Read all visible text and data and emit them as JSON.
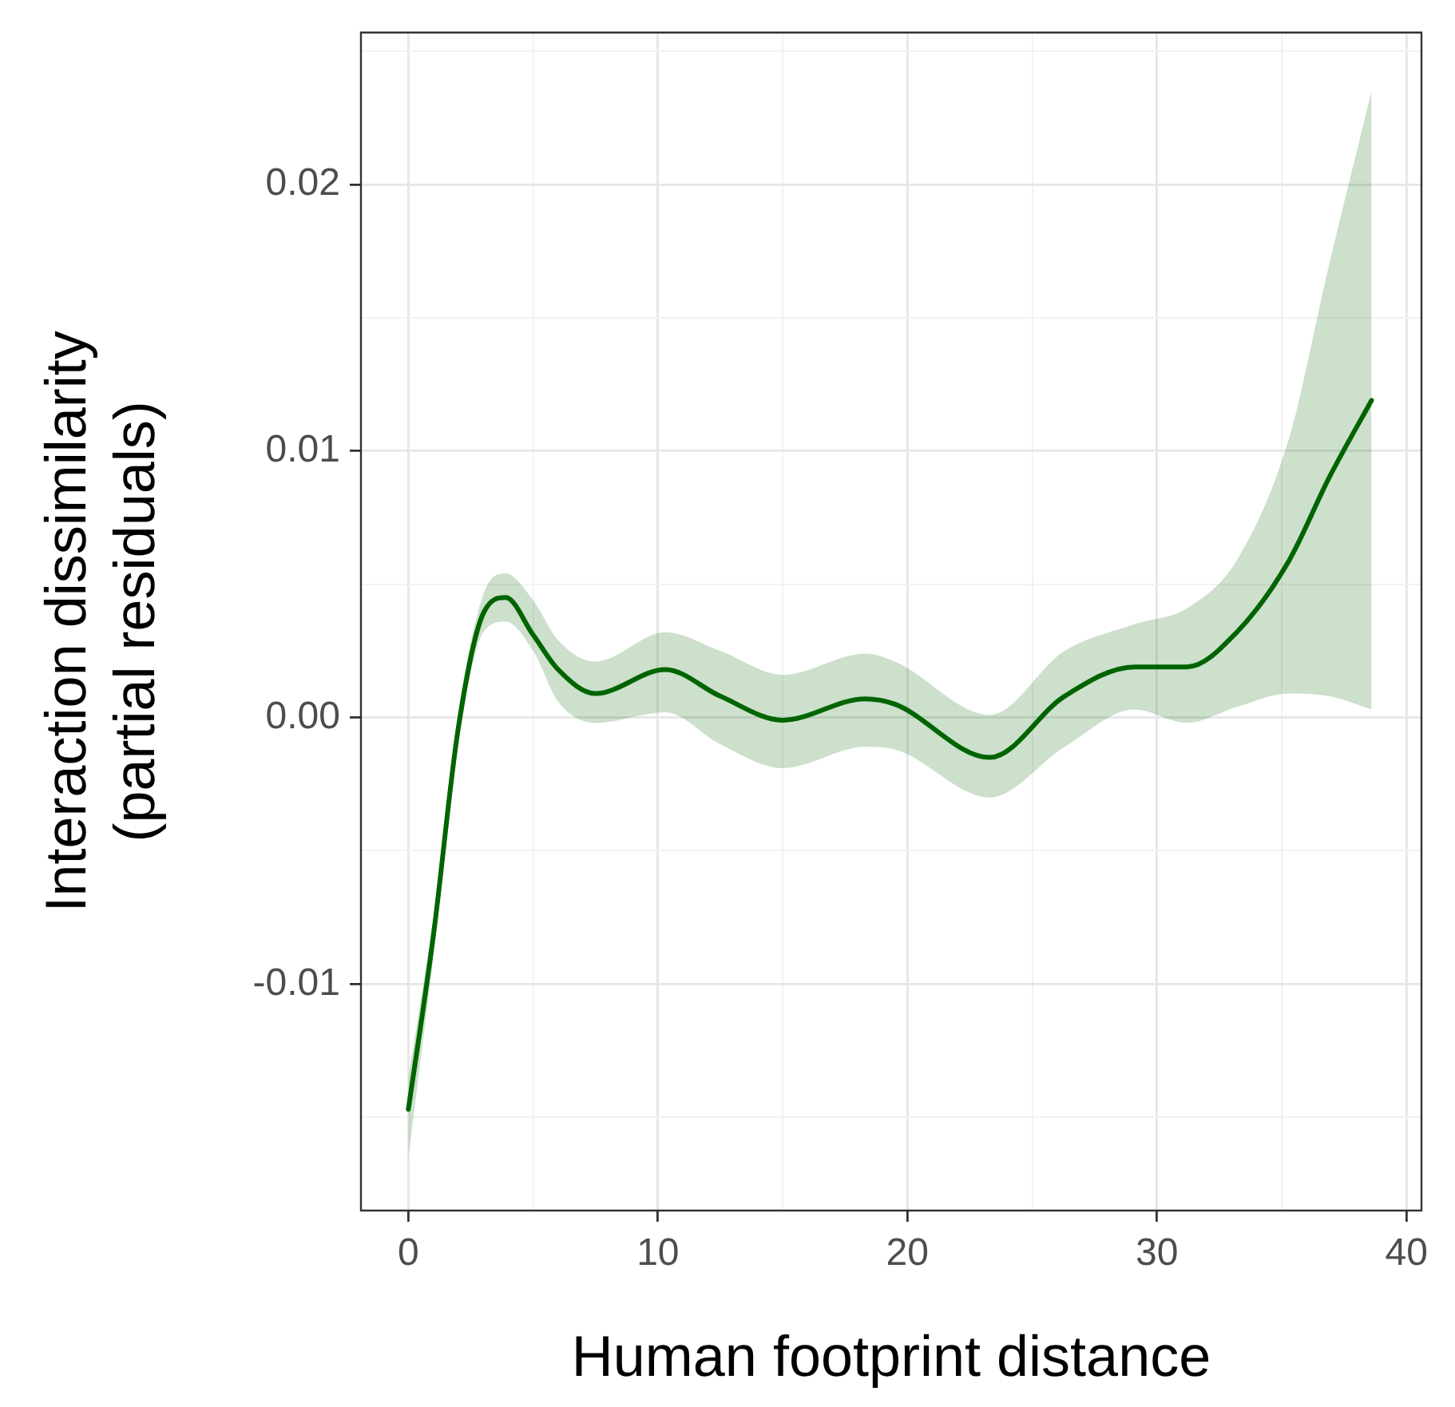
{
  "chart_data": {
    "type": "line",
    "xlabel": "Human footprint distance",
    "ylabel": "Interaction dissimilarity\n(partial residuals)",
    "series": [
      {
        "color": "#006400",
        "x": [
          0,
          1,
          2,
          3,
          3.9,
          5,
          6,
          7.5,
          10.3,
          12.5,
          15,
          18.3,
          19.5,
          23.3,
          26.3,
          29.1,
          31.2,
          33.2,
          35.3,
          36.9,
          38.6
        ],
        "values": [
          -0.0147,
          -0.0082,
          -0.0004,
          0.0039,
          0.0045,
          0.0031,
          0.0018,
          0.0009,
          0.0018,
          0.0008,
          -0.0001,
          0.0007,
          0.0005,
          -0.0015,
          0.0008,
          0.0019,
          0.0019,
          0.0032,
          0.0059,
          0.009,
          0.0119
        ],
        "lower": [
          -0.0165,
          -0.009,
          -0.001,
          0.0032,
          0.0036,
          0.0025,
          0.0006,
          -0.0002,
          0.0002,
          -0.001,
          -0.0019,
          -0.0011,
          -0.0012,
          -0.003,
          -0.0011,
          0.0003,
          -0.0002,
          0.0004,
          0.0009,
          0.0008,
          0.0003
        ],
        "upper": [
          -0.0135,
          -0.0075,
          0.0002,
          0.0046,
          0.0054,
          0.0044,
          0.0029,
          0.0021,
          0.0032,
          0.0025,
          0.0016,
          0.0024,
          0.0021,
          0.0001,
          0.0025,
          0.0035,
          0.0041,
          0.0059,
          0.0105,
          0.017,
          0.0235
        ]
      }
    ],
    "xlim": [
      -1.9,
      40.6
    ],
    "ylim": [
      -0.0185,
      0.0257
    ],
    "xticks": [
      0,
      {
        "value": 5,
        "label": null
      },
      10,
      {
        "value": 15,
        "label": null
      },
      20,
      {
        "value": 25,
        "label": null
      },
      30,
      {
        "value": 35,
        "label": null
      },
      40
    ],
    "yticks": [
      {
        "value": -0.015,
        "label": null
      },
      -0.01,
      {
        "value": -0.005,
        "label": null
      },
      {
        "value": 0,
        "label": "0.00"
      },
      {
        "value": 0.005,
        "label": null
      },
      0.01,
      {
        "value": 0.015,
        "label": null
      },
      0.02,
      {
        "value": 0.025,
        "label": null
      }
    ],
    "grid": true,
    "legend": false,
    "marker": "none",
    "line_style": "solid"
  }
}
